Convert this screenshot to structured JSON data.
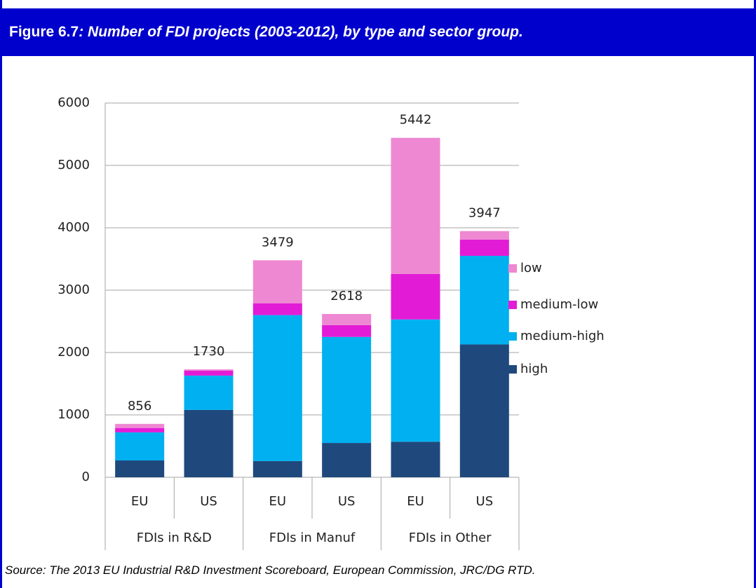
{
  "chart_data": {
    "type": "stacked_bar",
    "figure_label": "Figure 6.7",
    "title": ": Number of FDI projects (2003-2012), by type and sector group.",
    "source": "Source: The 2013 EU Industrial R&D Investment Scoreboard,  European Commission, JRC/DG RTD.",
    "categories": [
      "EU",
      "US",
      "EU",
      "US",
      "EU",
      "US"
    ],
    "groups": [
      "FDIs in R&D",
      "FDIs in Manuf",
      "FDIs in Other"
    ],
    "series": [
      {
        "name": "high",
        "color": "#1f497d",
        "values": [
          270,
          1080,
          260,
          550,
          570,
          2130
        ]
      },
      {
        "name": "medium-high",
        "color": "#00b0f0",
        "values": [
          450,
          550,
          2340,
          1700,
          1960,
          1420
        ]
      },
      {
        "name": "medium-low",
        "color": "#e21cd6",
        "values": [
          70,
          80,
          190,
          190,
          730,
          260
        ]
      },
      {
        "name": "low",
        "color": "#ee88d2",
        "values": [
          66,
          20,
          689,
          178,
          2182,
          137
        ]
      }
    ],
    "totals": [
      856,
      1730,
      3479,
      2618,
      5442,
      3947
    ],
    "ylim": [
      0,
      6000
    ],
    "yticks": [
      0,
      1000,
      2000,
      3000,
      4000,
      5000,
      6000
    ],
    "grid": true
  }
}
